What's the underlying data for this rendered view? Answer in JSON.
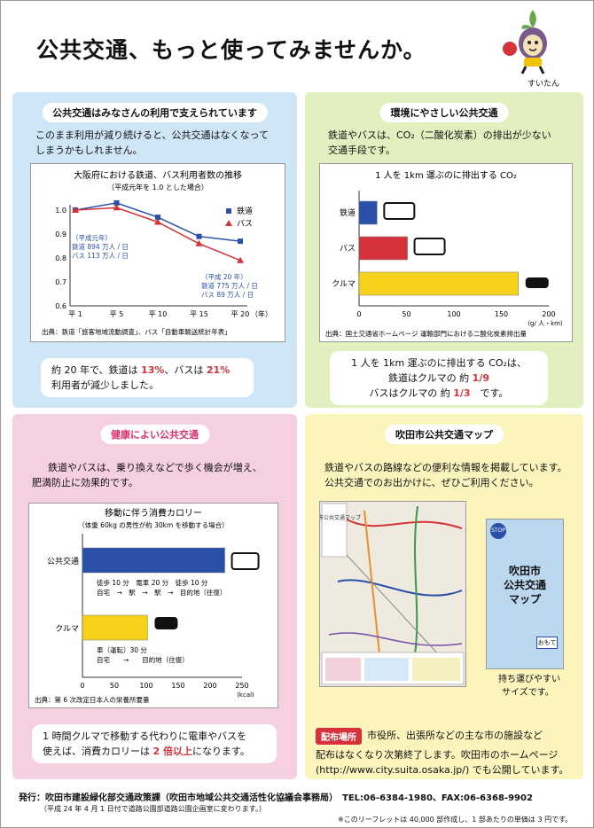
{
  "header": {
    "title": "公共交通、もっと使ってみませんか。",
    "mascot_name": "すいたん"
  },
  "panel1": {
    "title": "公共交通はみなさんの利用で支えられています",
    "desc": [
      "このまま利用が減り続けると、公共交通はなくなって",
      "しまうかもしれません。"
    ],
    "note": {
      "pre": "約 20 年で、鉄道は ",
      "v1": "13%",
      "mid": "、バスは ",
      "v2": "21%",
      "post": "利用者が減少しました。"
    }
  },
  "panel2": {
    "title": "環境にやさしい公共交通",
    "desc": [
      "鉄道やバスは、CO₂（二酸化炭素）の排出が少ない",
      "交通手段です。"
    ],
    "note": {
      "line1": "1 人を 1km 運ぶのに排出する CO₂は、",
      "rail_pre": "鉄道はクルマの 約 ",
      "rail_val": "1/9",
      "bus_pre": "バスはクルマの 約 ",
      "bus_val": "1/3",
      "bus_post": "　です。"
    }
  },
  "panel3": {
    "title": "健康によい公共交通",
    "desc": [
      "鉄道やバスは、乗り換えなどで歩く機会が増え、",
      "肥満防止に効果的です。"
    ],
    "note": {
      "line1": "1 時間クルマで移動する代わりに電車やバスを",
      "pre": "使えば、消費カロリーは ",
      "val": "2 倍以上",
      "post": "になります。"
    }
  },
  "panel4": {
    "title": "吹田市公共交通マップ",
    "desc": [
      "鉄道やバスの路線などの便利な情報を掲載しています。",
      "公共交通でのお出かけに、ぜひご利用ください。"
    ],
    "map_label": "吹田市公共交通マップ",
    "cover_title": [
      "吹田市",
      "公共交通",
      "マップ"
    ],
    "cover_sub": "おもて",
    "portable": [
      "持ち運びやすい",
      "サイズです。"
    ],
    "badge": "配布場所",
    "badge_text": "市役所、出張所などの主な市の施設など",
    "web": [
      "配布はなくなり次第終了します。吹田市のホームページ",
      "(http://www.city.suita.osaka.jp/) でも公開しています。"
    ]
  },
  "footer": {
    "publisher": "発行：吹田市建設緑化部交通政策課（吹田市地域公共交通活性化協議会事務局）　TEL:06-6384-1980、FAX:06-6368-9902",
    "note1": "（平成 24 年 4 月 1 日付で道路公園部道路公園企画室に変わります。）",
    "note2": "※このリーフレットは 40,000 部作成し、1 部あたりの単価は 3 円です。"
  },
  "chart_data": [
    {
      "type": "line",
      "title": "大阪府における鉄道、バス利用者数の推移",
      "subtitle": "（平成元年を 1.0 とした場合）",
      "categories": [
        "平 1",
        "平 5",
        "平 10",
        "平 15",
        "平 20"
      ],
      "x_unit": "（年）",
      "ylim": [
        0.6,
        1.0
      ],
      "yticks": [
        "0.6",
        "0.7",
        "0.8",
        "0.9",
        "1.0"
      ],
      "series": [
        {
          "name": "鉄道",
          "values": [
            1.0,
            1.03,
            0.97,
            0.89,
            0.87
          ],
          "color": "#2a4fa8"
        },
        {
          "name": "バス",
          "values": [
            1.0,
            1.01,
            0.95,
            0.86,
            0.79
          ],
          "color": "#d5323b"
        }
      ],
      "annotations": {
        "start": [
          "（平成元年）",
          "鉄道 894 万人 / 日",
          "バス 113 万人 / 日"
        ],
        "end": [
          "（平成 20 年）",
          "鉄道 775 万人 / 日",
          "バス 89 万人 / 日"
        ]
      },
      "source": "出典：鉄道「旅客地域流動調査」、バス「自動車輸送統計年表」"
    },
    {
      "type": "bar",
      "title": "1 人を 1km 運ぶのに排出する CO₂",
      "categories": [
        "鉄道",
        "バス",
        "クルマ"
      ],
      "values": [
        19,
        51,
        168
      ],
      "colors": [
        "#2a4fa8",
        "#d5323b",
        "#f5d11c"
      ],
      "xlim": [
        0,
        200
      ],
      "xticks": [
        "0",
        "50",
        "100",
        "150",
        "200"
      ],
      "x_unit": "(g/ 人・km)",
      "source": "出典：国土交通省ホームページ 運輸部門における二酸化炭素排出量"
    },
    {
      "type": "bar",
      "title": "移動に伴う消費カロリー",
      "subtitle": "（体重 60kg の男性が約 30km を移動する場合）",
      "categories": [
        "公共交通",
        "クルマ"
      ],
      "values": [
        223,
        102
      ],
      "colors": [
        "#2a4fa8",
        "#f5d11c"
      ],
      "xlim": [
        0,
        250
      ],
      "xticks": [
        "0",
        "50",
        "100",
        "150",
        "200",
        "250"
      ],
      "x_unit": "(kcal)",
      "details": {
        "公共交通": [
          "徒歩 10 分　電車 20 分　徒歩 10 分",
          "自宅　→　駅　→　駅　→　目的地（往復）"
        ],
        "クルマ": [
          "車（運転）30 分",
          "自宅　　→　　目的地（往復）"
        ]
      },
      "source": "出典：第 6 次改定日本人の栄養所要量"
    }
  ]
}
